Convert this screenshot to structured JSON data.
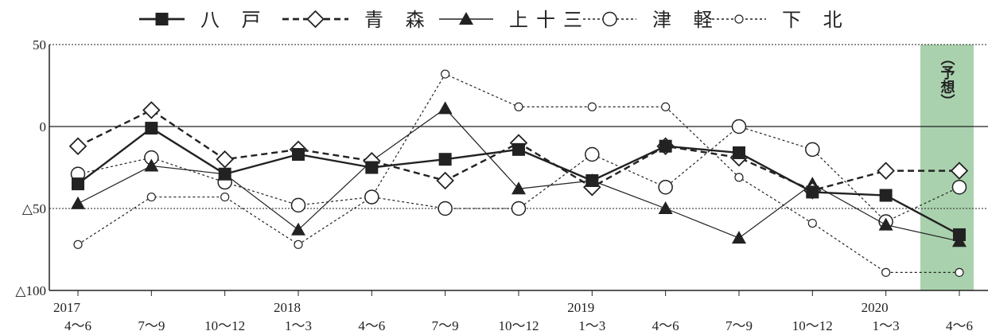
{
  "chart_data": {
    "type": "line",
    "categories": [
      {
        "year": "2017",
        "period": "4〜6"
      },
      {
        "year": "",
        "period": "7〜9"
      },
      {
        "year": "",
        "period": "10〜12"
      },
      {
        "year": "2018",
        "period": "1〜3"
      },
      {
        "year": "",
        "period": "4〜6"
      },
      {
        "year": "",
        "period": "7〜9"
      },
      {
        "year": "",
        "period": "10〜12"
      },
      {
        "year": "2019",
        "period": "1〜3"
      },
      {
        "year": "",
        "period": "4〜6"
      },
      {
        "year": "",
        "period": "7〜9"
      },
      {
        "year": "",
        "period": "10〜12"
      },
      {
        "year": "2020",
        "period": "1〜3"
      },
      {
        "year": "",
        "period": "4〜6"
      }
    ],
    "ylim": [
      -100,
      50
    ],
    "yticks": [
      {
        "value": 50,
        "label": "50"
      },
      {
        "value": 0,
        "label": "0"
      },
      {
        "value": -50,
        "label": "△50"
      },
      {
        "value": -100,
        "label": "△100"
      }
    ],
    "forecast_label": "（予想）",
    "legend_position": "top",
    "series": [
      {
        "name": "八 戸",
        "marker": "filled-square",
        "line": "solid-thick",
        "values": [
          -35,
          -1,
          -29,
          -17,
          -25,
          -20,
          -14,
          -33,
          -12,
          -16,
          -40,
          -42,
          -66
        ]
      },
      {
        "name": "青 森",
        "marker": "open-diamond",
        "line": "dashed-thick",
        "values": [
          -12,
          10,
          -20,
          -14,
          -21,
          -33,
          -10,
          -37,
          -12,
          -19,
          -39,
          -27,
          -27
        ]
      },
      {
        "name": "上十三",
        "marker": "filled-triangle",
        "line": "solid-thin",
        "values": [
          -47,
          -24,
          -29,
          -63,
          -21,
          11,
          -38,
          -33,
          -50,
          -68,
          -35,
          -60,
          -70
        ]
      },
      {
        "name": "津 軽",
        "marker": "open-circle",
        "line": "dotted",
        "values": [
          -29,
          -19,
          -34,
          -48,
          -43,
          -50,
          -50,
          -17,
          -37,
          0,
          -14,
          -58,
          -37
        ]
      },
      {
        "name": "下 北",
        "marker": "small-open-circle",
        "line": "dotted",
        "values": [
          -72,
          -43,
          -43,
          -72,
          -43,
          32,
          12,
          12,
          12,
          -31,
          -59,
          -89,
          -89
        ]
      }
    ]
  },
  "colors": {
    "forecast_band": "#a9d1ad",
    "line": "#222222"
  }
}
